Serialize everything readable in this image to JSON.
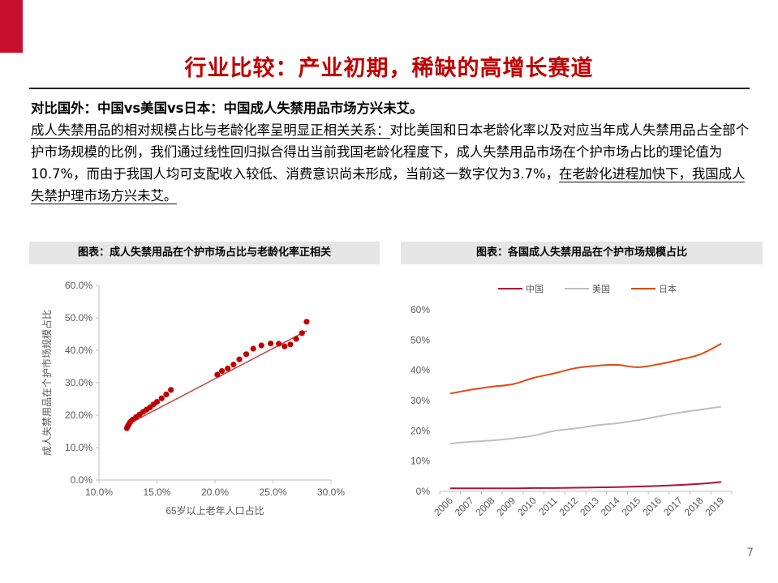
{
  "page": {
    "title": "行业比较：产业初期，稀缺的高增长赛道",
    "accent_color": "#c8102e",
    "title_color": "#c00000",
    "page_number": "7"
  },
  "body": {
    "heading": "对比国外：中国vs美国vs日本：中国成人失禁用品市场方兴未艾。",
    "para_underlined_1": "成人失禁用品的相对规模占比与老龄化率呈明显正相关关系：",
    "para_text_1": "对比美国和日本老龄化率以及对应当年成人失禁用品占全部个护市场规模的比例，我们通过线性回归拟合得出当前我国老龄化程度下，成人失禁用品市场在个护市场占比的理论值为10.7%，而由于我国人均可支配收入较低、消费意识尚未形成，当前这一数字仅为3.7%，",
    "para_underlined_2": "在老龄化进程加快下，我国成人失禁护理市场方兴未艾。"
  },
  "captions": {
    "left": "图表：成人失禁用品在个护市场占比与老龄化率正相关",
    "right": "图表：各国成人失禁用品在个护市场规模占比"
  },
  "chart_data": [
    {
      "type": "scatter",
      "xlabel": "65岁以上老年人口占比",
      "ylabel": "成人失禁用品在个护市场规模占比",
      "xlim": [
        10,
        30
      ],
      "ylim": [
        0,
        60
      ],
      "x_ticks": [
        "10.0%",
        "15.0%",
        "20.0%",
        "25.0%",
        "30.0%"
      ],
      "y_ticks": [
        "0.0%",
        "10.0%",
        "20.0%",
        "30.0%",
        "40.0%",
        "50.0%",
        "60.0%"
      ],
      "grid": false,
      "points": [
        [
          12.4,
          16.0
        ],
        [
          12.5,
          16.7
        ],
        [
          12.6,
          17.3
        ],
        [
          12.7,
          17.9
        ],
        [
          12.9,
          18.6
        ],
        [
          13.2,
          19.4
        ],
        [
          13.5,
          20.2
        ],
        [
          13.8,
          21.0
        ],
        [
          14.1,
          21.7
        ],
        [
          14.4,
          22.4
        ],
        [
          14.7,
          23.3
        ],
        [
          15.0,
          24.1
        ],
        [
          15.4,
          25.2
        ],
        [
          15.8,
          26.4
        ],
        [
          16.2,
          27.8
        ],
        [
          20.2,
          32.5
        ],
        [
          20.6,
          33.6
        ],
        [
          21.1,
          34.4
        ],
        [
          21.6,
          35.6
        ],
        [
          22.1,
          37.2
        ],
        [
          22.7,
          38.8
        ],
        [
          23.3,
          40.5
        ],
        [
          24.0,
          41.5
        ],
        [
          24.8,
          42.1
        ],
        [
          25.5,
          42.0
        ],
        [
          26.0,
          41.2
        ],
        [
          26.5,
          41.8
        ],
        [
          27.0,
          43.5
        ],
        [
          27.5,
          45.3
        ],
        [
          27.9,
          48.8
        ]
      ],
      "trendline": [
        [
          12.4,
          17.0
        ],
        [
          27.9,
          46.0
        ]
      ],
      "marker_color": "#c00000",
      "trend_color": "#c0504d"
    },
    {
      "type": "line",
      "x": [
        "2006",
        "2007",
        "2008",
        "2009",
        "2010",
        "2011",
        "2012",
        "2013",
        "2014",
        "2015",
        "2016",
        "2017",
        "2018",
        "2019"
      ],
      "ylim": [
        0,
        60
      ],
      "y_ticks": [
        "0%",
        "10%",
        "20%",
        "30%",
        "40%",
        "50%",
        "60%"
      ],
      "legend": "top",
      "grid": false,
      "series": [
        {
          "name": "中国",
          "color": "#b0103a",
          "values": [
            1.0,
            1.0,
            1.0,
            1.0,
            1.1,
            1.1,
            1.2,
            1.3,
            1.4,
            1.6,
            1.8,
            2.1,
            2.5,
            3.1
          ]
        },
        {
          "name": "美国",
          "color": "#bfbfbf",
          "values": [
            15.8,
            16.4,
            16.8,
            17.5,
            18.4,
            20.0,
            20.8,
            21.8,
            22.5,
            23.5,
            24.8,
            26.0,
            27.0,
            28.0
          ]
        },
        {
          "name": "日本",
          "color": "#e2480d",
          "values": [
            32.3,
            33.6,
            34.6,
            35.4,
            37.5,
            39.0,
            40.7,
            41.5,
            41.8,
            41.0,
            42.0,
            43.5,
            45.3,
            48.8
          ]
        }
      ]
    }
  ]
}
